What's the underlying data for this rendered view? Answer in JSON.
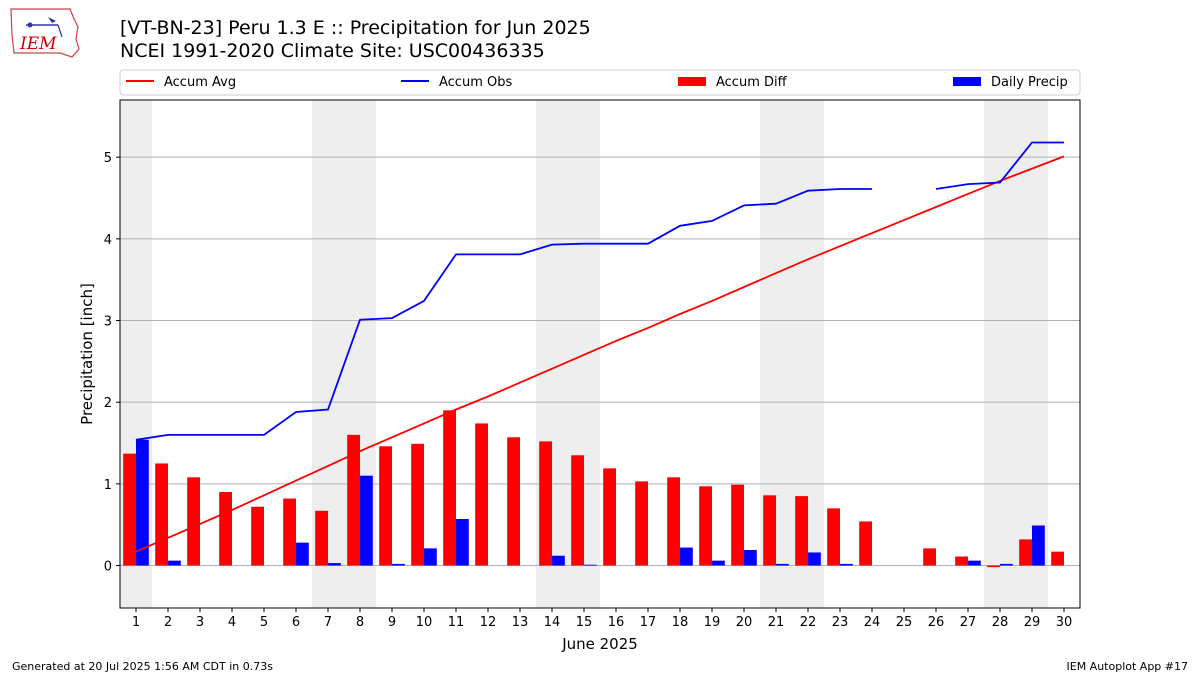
{
  "header": {
    "title": "[VT-BN-23] Peru 1.3 E :: Precipitation for Jun 2025",
    "subtitle": "NCEI 1991-2020 Climate Site: USC00436335"
  },
  "logo": {
    "text": "IEM",
    "color": "#cc0000"
  },
  "footer": {
    "left": "Generated at 20 Jul 2025 1:56 AM CDT in 0.73s",
    "right": "IEM Autoplot App #17"
  },
  "chart_data": {
    "type": "bar",
    "xlabel": "June 2025",
    "ylabel": "Precipitation [inch]",
    "xlim": [
      0.5,
      30.5
    ],
    "ylim": [
      -0.52,
      5.7
    ],
    "yticks": [
      0,
      1,
      2,
      3,
      4,
      5
    ],
    "grid": "horizontal",
    "legend_position": "top",
    "weekend_color": "#eeeeee",
    "weekend_bands": [
      [
        0.5,
        1.5
      ],
      [
        6.5,
        8.5
      ],
      [
        13.5,
        15.5
      ],
      [
        20.5,
        22.5
      ],
      [
        27.5,
        29.5
      ]
    ],
    "days": [
      1,
      2,
      3,
      4,
      5,
      6,
      7,
      8,
      9,
      10,
      11,
      12,
      13,
      14,
      15,
      16,
      17,
      18,
      19,
      20,
      21,
      22,
      23,
      24,
      25,
      26,
      27,
      28,
      29,
      30
    ],
    "series": [
      {
        "name": "Accum Avg",
        "kind": "line",
        "color": "#ff0000",
        "values": [
          0.17,
          0.34,
          0.51,
          0.68,
          0.86,
          1.04,
          1.22,
          1.4,
          1.57,
          1.74,
          1.91,
          2.07,
          2.24,
          2.41,
          2.58,
          2.75,
          2.91,
          3.08,
          3.24,
          3.41,
          3.58,
          3.75,
          3.91,
          4.07,
          4.23,
          4.39,
          4.55,
          4.71,
          4.86,
          5.01
        ]
      },
      {
        "name": "Accum Obs",
        "kind": "line",
        "color": "#0000ff",
        "values": [
          1.54,
          1.6,
          1.6,
          1.6,
          1.6,
          1.88,
          1.91,
          3.01,
          3.03,
          3.24,
          3.81,
          3.81,
          3.81,
          3.93,
          3.94,
          3.94,
          3.94,
          4.16,
          4.22,
          4.41,
          4.43,
          4.59,
          4.61,
          4.61,
          null,
          4.61,
          4.67,
          4.69,
          5.18,
          5.18
        ]
      },
      {
        "name": "Accum Diff",
        "kind": "bar",
        "color": "#ff0000",
        "values": [
          1.37,
          1.25,
          1.08,
          0.9,
          0.72,
          0.82,
          0.67,
          1.6,
          1.46,
          1.49,
          1.9,
          1.74,
          1.57,
          1.52,
          1.35,
          1.19,
          1.03,
          1.08,
          0.97,
          0.99,
          0.86,
          0.85,
          0.7,
          0.54,
          0,
          0.21,
          0.11,
          -0.02,
          0.32,
          0.17
        ]
      },
      {
        "name": "Daily Precip",
        "kind": "bar",
        "color": "#0000ff",
        "values": [
          1.54,
          0.06,
          0,
          0,
          0,
          0.28,
          0.03,
          1.1,
          0.02,
          0.21,
          0.57,
          0,
          0,
          0.12,
          0.01,
          0,
          0,
          0.22,
          0.06,
          0.19,
          0.02,
          0.16,
          0.02,
          0,
          0,
          0,
          0.06,
          0.02,
          0.49,
          0
        ]
      }
    ]
  }
}
